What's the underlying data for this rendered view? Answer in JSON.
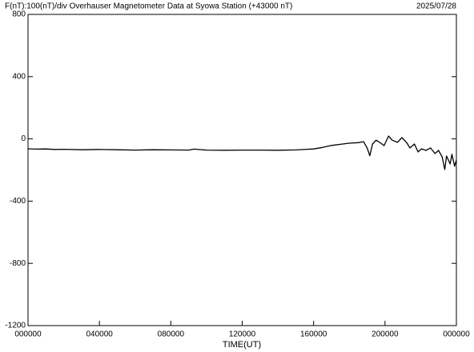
{
  "chart_data": {
    "type": "line",
    "title": "F(nT):100(nT)/div  Overhauser Magnetometer Data at Syowa Station (+43000 nT)",
    "date": "2025/07/28",
    "x_label": "TIME(UT)",
    "xlim": [
      0,
      24
    ],
    "xticks": [
      {
        "value": 0,
        "label": "000000"
      },
      {
        "value": 4,
        "label": "040000"
      },
      {
        "value": 8,
        "label": "080000"
      },
      {
        "value": 12,
        "label": "120000"
      },
      {
        "value": 16,
        "label": "160000"
      },
      {
        "value": 20,
        "label": "200000"
      },
      {
        "value": 24,
        "label": "000000"
      }
    ],
    "ylim": [
      -1200,
      800
    ],
    "yticks": [
      -1200,
      -800,
      -400,
      0,
      400,
      800
    ],
    "x": [
      0,
      0.5,
      1,
      1.5,
      2,
      3,
      4,
      5,
      6,
      7,
      8,
      9,
      9.3,
      10,
      11,
      12,
      13,
      14,
      15,
      16,
      16.5,
      17,
      17.5,
      18,
      18.5,
      18.8,
      19,
      19.15,
      19.3,
      19.5,
      19.7,
      19.95,
      20.2,
      20.4,
      20.7,
      20.95,
      21.2,
      21.4,
      21.65,
      21.85,
      22.05,
      22.3,
      22.55,
      22.8,
      23,
      23.2,
      23.35,
      23.45,
      23.65,
      23.75,
      23.9,
      24
    ],
    "series": [
      {
        "name": "F",
        "color": "#000000",
        "values": [
          -64,
          -66,
          -65,
          -68,
          -67,
          -70,
          -68,
          -70,
          -72,
          -70,
          -71,
          -72,
          -66,
          -72,
          -73,
          -72,
          -72,
          -73,
          -71,
          -65,
          -55,
          -42,
          -35,
          -28,
          -24,
          -18,
          -58,
          -108,
          -33,
          -8,
          -22,
          -43,
          18,
          -8,
          -22,
          8,
          -22,
          -58,
          -33,
          -84,
          -64,
          -74,
          -58,
          -94,
          -74,
          -115,
          -197,
          -110,
          -161,
          -99,
          -176,
          -135
        ]
      }
    ]
  }
}
